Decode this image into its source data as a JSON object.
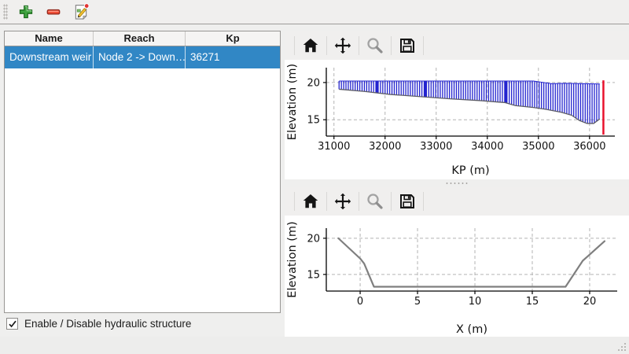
{
  "main_toolbar": {
    "buttons": [
      {
        "id": "add",
        "icon": "plus-icon"
      },
      {
        "id": "remove",
        "icon": "minus-icon"
      },
      {
        "id": "edit",
        "icon": "edit-document-icon"
      }
    ]
  },
  "table": {
    "columns": [
      "Name",
      "Reach",
      "Kp"
    ],
    "rows": [
      {
        "name": "Downstream weir",
        "reach": "Node 2 -> Down…",
        "kp": "36271"
      }
    ],
    "selected_row": 0,
    "selection_color": "#3187c5"
  },
  "checkbox": {
    "label": "Enable / Disable hydraulic structure",
    "checked": true
  },
  "chart_toolbar": {
    "icons": [
      "home",
      "pan",
      "zoom",
      "save"
    ]
  },
  "colors": {
    "profile_blue": "#2323cf",
    "weir_marker_red": "#e8112d",
    "cross_section_gray": "#7f7f7f",
    "grid_gray": "#b3b3b3"
  },
  "chart_data": [
    {
      "type": "area",
      "title": "",
      "xlabel": "KP (m)",
      "ylabel": "Elevation (m)",
      "xlim": [
        30850,
        36495
      ],
      "ylim": [
        12.8,
        22.0
      ],
      "xticks": [
        31000,
        32000,
        33000,
        34000,
        35000,
        36000
      ],
      "yticks": [
        15,
        20
      ],
      "grid": true,
      "legend": "none",
      "series": [
        {
          "name": "riverbed-longitudinal-profile",
          "style": "vhatch",
          "color": "#2323cf",
          "hatch_step": 45,
          "emphasis": [
            31850,
            32785,
            34360
          ],
          "top": [
            [
              31100,
              20.2
            ],
            [
              34900,
              20.2
            ],
            [
              35060,
              20.05
            ],
            [
              35260,
              19.85
            ],
            [
              35520,
              19.9
            ],
            [
              36200,
              19.8
            ]
          ],
          "bed": [
            [
              31100,
              19.1
            ],
            [
              31600,
              18.8
            ],
            [
              32100,
              18.4
            ],
            [
              32700,
              18.1
            ],
            [
              33300,
              17.8
            ],
            [
              33900,
              17.55
            ],
            [
              34350,
              17.3
            ],
            [
              34550,
              16.9
            ],
            [
              34900,
              16.65
            ],
            [
              35150,
              16.4
            ],
            [
              35450,
              16.0
            ],
            [
              35650,
              15.6
            ],
            [
              35800,
              14.9
            ],
            [
              35950,
              14.5
            ],
            [
              36080,
              14.5
            ],
            [
              36200,
              15.1
            ]
          ]
        },
        {
          "name": "weir-location-marker",
          "style": "vline",
          "x": 36271,
          "y": [
            13.0,
            20.3
          ],
          "color": "#e8112d",
          "width": 2.5
        }
      ]
    },
    {
      "type": "line",
      "title": "",
      "xlabel": "X (m)",
      "ylabel": "Elevation (m)",
      "xlim": [
        -2.95,
        22.4
      ],
      "ylim": [
        12.7,
        21.4
      ],
      "xticks": [
        0,
        5,
        10,
        15,
        20
      ],
      "yticks": [
        15,
        20
      ],
      "grid": true,
      "legend": "none",
      "series": [
        {
          "name": "weir-cross-section",
          "style": "line",
          "color": "#7f7f7f",
          "width": 2.2,
          "points": [
            [
              -1.9,
              20.0
            ],
            [
              0.0,
              17.2
            ],
            [
              0.35,
              16.5
            ],
            [
              1.2,
              13.3
            ],
            [
              17.9,
              13.3
            ],
            [
              19.4,
              16.9
            ],
            [
              19.9,
              17.6
            ],
            [
              21.3,
              19.6
            ]
          ]
        }
      ]
    }
  ]
}
